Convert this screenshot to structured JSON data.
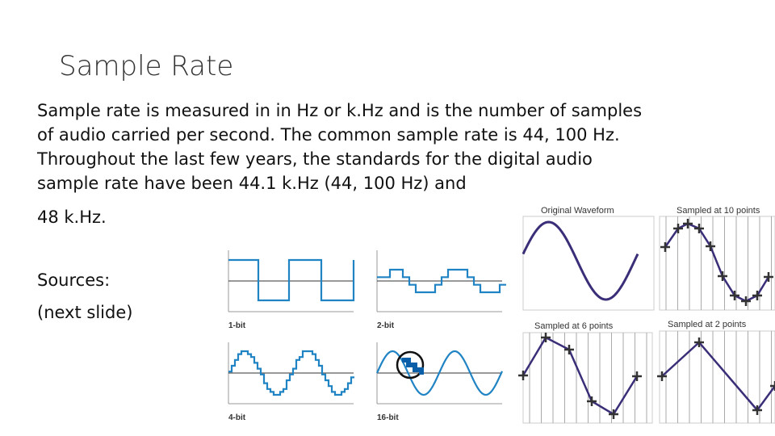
{
  "title": "Sample Rate",
  "body": [
    "Sample rate is measured in in Hz or k.Hz and is the number of samples",
    "of audio carried per second. The common sample rate is 44, 100 Hz.",
    "Throughout the last few years, the standards for the digital audio",
    "sample rate have been 44.1 k.Hz (44, 100 Hz) and",
    "48 k.Hz."
  ],
  "sources": [
    "Sources:",
    "(next slide)"
  ],
  "bit_depth_figure": {
    "labels": [
      "1-bit",
      "2-bit",
      "4-bit",
      "16-bit"
    ]
  },
  "sampling_figure": {
    "labels": [
      "Original Waveform",
      "Sampled at 10 points",
      "Sampled at 6 points",
      "Sampled at 2 points"
    ]
  }
}
